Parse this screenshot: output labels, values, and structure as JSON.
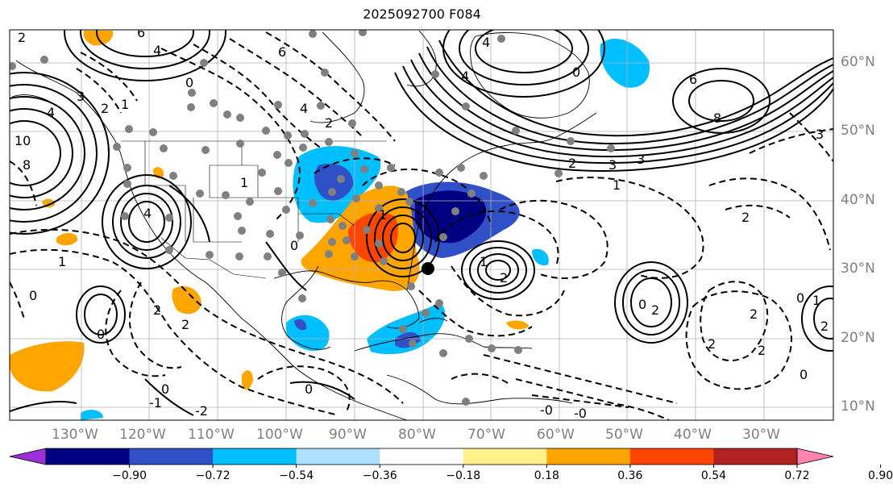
{
  "title": "2025092700 F084",
  "lat_labels": [
    "60°N",
    "50°N",
    "40°N",
    "30°N",
    "20°N",
    "10°N"
  ],
  "lon_labels": [
    "130°W",
    "120°W",
    "110°W",
    "100°W",
    "90°W",
    "80°W",
    "70°W",
    "60°W",
    "50°W",
    "40°W",
    "30°W"
  ],
  "colorbar": {
    "tick_labels": [
      "−0.90",
      "−0.72",
      "−0.54",
      "−0.36",
      "−0.18",
      "0.18",
      "0.36",
      "0.54",
      "0.72",
      "0.90"
    ],
    "colors": [
      "#9b30d8",
      "#000080",
      "#3050c8",
      "#00bfff",
      "#aee0ff",
      "#ffffff",
      "#fff08a",
      "#ffa500",
      "#ff4500",
      "#b22222",
      "#ff85ad"
    ]
  },
  "contour_labels": [
    "6",
    "4",
    "2",
    "0",
    "6",
    "4",
    "2",
    "0",
    "1",
    "4",
    "4",
    "8",
    "3",
    "6",
    "10",
    "8",
    "4",
    "3",
    "2",
    "1",
    "0",
    "3",
    "2",
    "1",
    "0",
    "2",
    "0",
    "2",
    "3",
    "1",
    "2",
    "0",
    "2",
    "4",
    "1",
    "0",
    "-0",
    "-1",
    "-2",
    "1",
    "2",
    "0",
    "1",
    "2",
    "0",
    "2",
    "2",
    "0",
    "2",
    "-0"
  ],
  "marked_point": "black dot (storm position)"
}
